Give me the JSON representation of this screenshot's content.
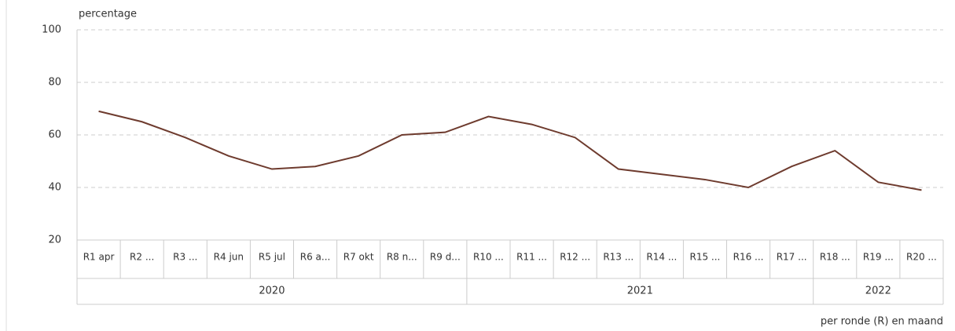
{
  "chart_data": {
    "type": "line",
    "y_label": "percentage",
    "x_label": "per ronde (R) en maand",
    "groups": [
      {
        "label": "2020",
        "categories": [
          "R1 apr",
          "R2 ...",
          "R3 ...",
          "R4 jun",
          "R5 jul",
          "R6 a...",
          "R7 okt",
          "R8 n...",
          "R9 d..."
        ]
      },
      {
        "label": "2021",
        "categories": [
          "R10 ...",
          "R11 ...",
          "R12 ...",
          "R13 ...",
          "R14 ...",
          "R15 ...",
          "R16 ...",
          "R17 ..."
        ]
      },
      {
        "label": "2022",
        "categories": [
          "R18 ...",
          "R19 ...",
          "R20 ..."
        ]
      }
    ],
    "values": [
      69,
      65,
      59,
      52,
      47,
      48,
      52,
      60,
      61,
      67,
      64,
      59,
      47,
      45,
      43,
      40,
      48,
      54,
      42,
      39
    ],
    "color": "#6e3b2e",
    "ylim": [
      20,
      100
    ],
    "yticks": [
      20,
      40,
      60,
      80,
      100
    ],
    "grid": true
  }
}
